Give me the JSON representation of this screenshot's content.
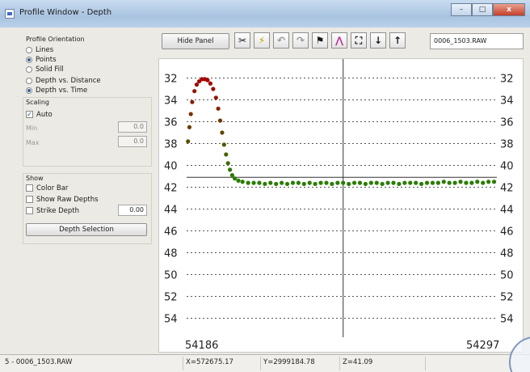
{
  "window": {
    "title": "Profile Window - Depth",
    "minimize_label": "–",
    "maximize_label": "□",
    "close_label": "x"
  },
  "panel": {
    "orientation_label": "Profile Orientation",
    "orientation_options": [
      "Lines",
      "Points",
      "Solid Fill",
      "Depth vs. Distance",
      "Depth vs. Time"
    ],
    "selected_orientation": "Points",
    "selected_mode": "Depth vs. Time",
    "scaling_label": "Scaling",
    "auto_label": "Auto",
    "auto_checked": true,
    "min_label": "Min",
    "min_value": "0.0",
    "max_label": "Max",
    "max_value": "0.0",
    "show_label": "Show",
    "color_bar_label": "Color Bar",
    "raw_depths_label": "Show Raw Depths",
    "strike_depth_label": "Strike Depth",
    "strike_depth_value": "0.00",
    "depth_selection_label": "Depth Selection"
  },
  "toolbar": {
    "hide_panel_label": "Hide Panel",
    "icons": [
      "scissors-icon",
      "lightning-icon",
      "undo-icon",
      "redo-icon",
      "flag-icon",
      "profile-icon",
      "fit-icon",
      "down-arrow-icon",
      "up-arrow-icon"
    ],
    "icon_glyphs": [
      "✂",
      "⚡",
      "↶",
      "↷",
      "⚑",
      "⋀",
      "⛶",
      "↓",
      "↑"
    ],
    "file_name": "0006_1503.RAW"
  },
  "chart_data": {
    "type": "scatter",
    "x_start_label": "54186",
    "x_end_label": "54297",
    "xlim": [
      54186,
      54297
    ],
    "ylim": [
      31,
      55
    ],
    "y_inverted": true,
    "ytick_labels": [
      "32",
      "34",
      "36",
      "38",
      "40",
      "42",
      "44",
      "46",
      "48",
      "50",
      "52",
      "54"
    ],
    "cursor_x": 54242,
    "cursor_depth": 41.09,
    "series": [
      {
        "color_gradient": [
          "#a80000",
          "#2a7d00"
        ],
        "points": [
          [
            54186.5,
            37.8
          ],
          [
            54187,
            36.5
          ],
          [
            54187.5,
            35.3
          ],
          [
            54188,
            34.2
          ],
          [
            54188.8,
            33.2
          ],
          [
            54189.6,
            32.6
          ],
          [
            54190.5,
            32.3
          ],
          [
            54191.5,
            32.1
          ],
          [
            54192.5,
            32.1
          ],
          [
            54193.5,
            32.2
          ],
          [
            54194.5,
            32.5
          ],
          [
            54195.5,
            33.0
          ],
          [
            54196.5,
            33.8
          ],
          [
            54197.3,
            34.8
          ],
          [
            54198,
            35.9
          ],
          [
            54198.7,
            37.0
          ],
          [
            54199.4,
            38.1
          ],
          [
            54200.1,
            39.0
          ],
          [
            54200.8,
            39.8
          ],
          [
            54201.5,
            40.4
          ],
          [
            54202.3,
            40.9
          ],
          [
            54203.2,
            41.2
          ],
          [
            54204.5,
            41.4
          ],
          [
            54206,
            41.5
          ],
          [
            54208,
            41.6
          ],
          [
            54210,
            41.6
          ],
          [
            54212,
            41.6
          ],
          [
            54214,
            41.7
          ],
          [
            54216,
            41.6
          ],
          [
            54218,
            41.7
          ],
          [
            54220,
            41.6
          ],
          [
            54222,
            41.7
          ],
          [
            54224,
            41.6
          ],
          [
            54226,
            41.6
          ],
          [
            54228,
            41.7
          ],
          [
            54230,
            41.6
          ],
          [
            54232,
            41.7
          ],
          [
            54234,
            41.6
          ],
          [
            54236,
            41.6
          ],
          [
            54238,
            41.7
          ],
          [
            54240,
            41.6
          ],
          [
            54242,
            41.6
          ],
          [
            54244,
            41.7
          ],
          [
            54246,
            41.6
          ],
          [
            54248,
            41.6
          ],
          [
            54250,
            41.7
          ],
          [
            54252,
            41.6
          ],
          [
            54254,
            41.6
          ],
          [
            54256,
            41.7
          ],
          [
            54258,
            41.6
          ],
          [
            54260,
            41.6
          ],
          [
            54262,
            41.7
          ],
          [
            54264,
            41.6
          ],
          [
            54266,
            41.6
          ],
          [
            54268,
            41.6
          ],
          [
            54270,
            41.7
          ],
          [
            54272,
            41.6
          ],
          [
            54274,
            41.6
          ],
          [
            54276,
            41.6
          ],
          [
            54278,
            41.5
          ],
          [
            54280,
            41.6
          ],
          [
            54282,
            41.6
          ],
          [
            54284,
            41.5
          ],
          [
            54286,
            41.6
          ],
          [
            54288,
            41.6
          ],
          [
            54290,
            41.5
          ],
          [
            54292,
            41.6
          ],
          [
            54294,
            41.5
          ],
          [
            54296,
            41.5
          ]
        ]
      }
    ]
  },
  "status": {
    "file": "5 - 0006_1503.RAW",
    "x_coord": "X=572675.17",
    "y_coord": "Y=2999184.78",
    "z_value": "Z=41.09"
  }
}
